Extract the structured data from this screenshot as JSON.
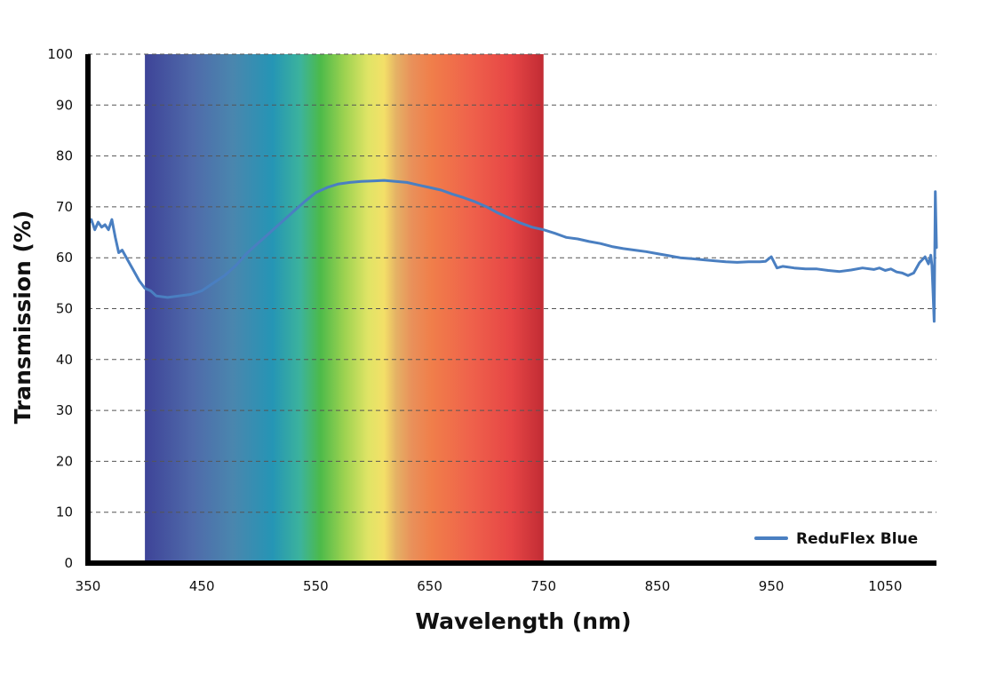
{
  "chart_data": {
    "type": "line",
    "xlabel": "Wavelength (nm)",
    "ylabel": "Transmission (%)",
    "xlim": [
      350,
      1095
    ],
    "ylim": [
      0,
      100
    ],
    "x_ticks": [
      "350",
      "450",
      "550",
      "650",
      "750",
      "850",
      "950",
      "1050"
    ],
    "y_ticks": [
      "0",
      "10",
      "20",
      "30",
      "40",
      "50",
      "60",
      "70",
      "80",
      "90",
      "100"
    ],
    "grid": "horizontal dashed",
    "legend_position": "bottom-right",
    "visible_spectrum_band": [
      400,
      750
    ],
    "colors": {
      "series": "#4a7fc1",
      "axis": "#000000",
      "grid": "#555555"
    },
    "series": [
      {
        "name": "ReduFlex Blue",
        "x": [
          350,
          353,
          356,
          359,
          362,
          365,
          368,
          371,
          374,
          377,
          380,
          385,
          390,
          395,
          400,
          405,
          410,
          420,
          430,
          440,
          450,
          460,
          470,
          480,
          490,
          500,
          510,
          520,
          530,
          540,
          550,
          560,
          570,
          580,
          590,
          600,
          610,
          620,
          630,
          640,
          650,
          660,
          670,
          680,
          690,
          700,
          710,
          720,
          730,
          740,
          750,
          760,
          770,
          780,
          790,
          800,
          810,
          820,
          830,
          840,
          850,
          860,
          870,
          880,
          890,
          900,
          910,
          920,
          930,
          940,
          945,
          950,
          955,
          960,
          970,
          980,
          990,
          1000,
          1010,
          1020,
          1030,
          1040,
          1045,
          1050,
          1055,
          1060,
          1065,
          1070,
          1075,
          1080,
          1085,
          1088,
          1090,
          1091,
          1092,
          1093,
          1094,
          1095
        ],
        "values": [
          66.5,
          67.5,
          65.5,
          67,
          66,
          66.5,
          65.5,
          67.5,
          64,
          61,
          61.5,
          59.5,
          57.5,
          55.5,
          54,
          53.5,
          52.5,
          52.2,
          52.5,
          52.8,
          53.5,
          55,
          56.5,
          58.5,
          61,
          63,
          65,
          67,
          69,
          71,
          72.8,
          73.8,
          74.5,
          74.8,
          75,
          75.1,
          75.2,
          75,
          74.8,
          74.3,
          73.8,
          73.3,
          72.5,
          71.8,
          71,
          70,
          68.8,
          67.8,
          66.8,
          66,
          65.5,
          64.8,
          64,
          63.7,
          63.2,
          62.8,
          62.2,
          61.8,
          61.5,
          61.2,
          60.8,
          60.4,
          60,
          59.8,
          59.6,
          59.4,
          59.2,
          59.1,
          59.2,
          59.2,
          59.3,
          60.2,
          58,
          58.3,
          58,
          57.8,
          57.8,
          57.5,
          57.3,
          57.6,
          58,
          57.7,
          58,
          57.5,
          57.8,
          57.2,
          57,
          56.5,
          57,
          59,
          60.2,
          58.8,
          60.5,
          58.5,
          53,
          47.5,
          73,
          62
        ]
      }
    ]
  }
}
